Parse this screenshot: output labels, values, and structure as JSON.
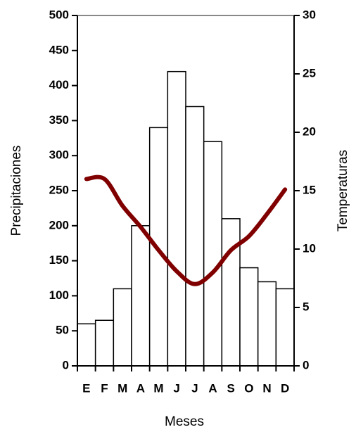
{
  "chart_data": {
    "type": "bar-line",
    "categories": [
      "E",
      "F",
      "M",
      "A",
      "M",
      "J",
      "J",
      "A",
      "S",
      "O",
      "N",
      "D"
    ],
    "x_label": "Meses",
    "y_label": "Precipitaciones",
    "y2_label": "Temperaturas",
    "ylim": [
      0,
      500
    ],
    "yticks": [
      0,
      50,
      100,
      150,
      200,
      250,
      300,
      350,
      400,
      450,
      500
    ],
    "y2lim": [
      0,
      30
    ],
    "y2ticks": [
      0,
      5,
      10,
      15,
      20,
      25,
      30
    ],
    "series": [
      {
        "type": "bar",
        "color": "#ffffff",
        "values": [
          60,
          65,
          110,
          200,
          340,
          420,
          370,
          320,
          210,
          140,
          120,
          110
        ]
      },
      {
        "type": "line",
        "axis": "y2",
        "color": "#800000",
        "values": [
          16,
          16,
          13.7,
          11.9,
          9.9,
          8.1,
          7,
          8,
          9.9,
          11.1,
          13,
          15.1
        ]
      }
    ]
  }
}
